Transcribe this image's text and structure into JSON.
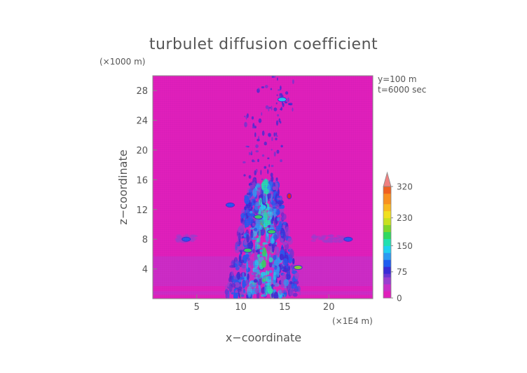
{
  "chart_data": {
    "type": "heatmap",
    "title": "turbulet diffusion coefficient",
    "xlabel": "x−coordinate",
    "ylabel": "z−coordinate",
    "x_unit": "(×1E4 m)",
    "y_unit": "(×1000 m)",
    "annotations": [
      "y=100  m",
      "t=6000 sec"
    ],
    "xlim": [
      0,
      25
    ],
    "ylim": [
      0,
      30
    ],
    "x_ticks": [
      5,
      10,
      15,
      20
    ],
    "y_ticks": [
      4,
      8,
      12,
      16,
      20,
      24,
      28
    ],
    "x_tick_labels": [
      "5",
      "10",
      "15",
      "20"
    ],
    "y_tick_labels": [
      "4",
      "8",
      "12",
      "16",
      "20",
      "24",
      "28"
    ],
    "grid": false,
    "background_value": 0,
    "colorbar": {
      "ticks": [
        0,
        75,
        150,
        230,
        320
      ],
      "tick_labels": [
        "0",
        "75",
        "150",
        "230",
        "320"
      ],
      "extend": "max",
      "levels": [
        {
          "value": 0,
          "color": "#e01fbb"
        },
        {
          "value": 20,
          "color": "#c82fc8"
        },
        {
          "value": 40,
          "color": "#9a3ed0"
        },
        {
          "value": 60,
          "color": "#6a36d4"
        },
        {
          "value": 75,
          "color": "#3a2cd6"
        },
        {
          "value": 95,
          "color": "#1f5cf0"
        },
        {
          "value": 115,
          "color": "#2a9af2"
        },
        {
          "value": 135,
          "color": "#1fd0f0"
        },
        {
          "value": 150,
          "color": "#22e0b0"
        },
        {
          "value": 170,
          "color": "#30d860"
        },
        {
          "value": 190,
          "color": "#7ed62c"
        },
        {
          "value": 210,
          "color": "#c8e020"
        },
        {
          "value": 230,
          "color": "#f0e020"
        },
        {
          "value": 255,
          "color": "#f8b820"
        },
        {
          "value": 275,
          "color": "#f89020"
        },
        {
          "value": 300,
          "color": "#f06020"
        },
        {
          "value": 320,
          "color": "#e82020"
        }
      ],
      "extend_color": "#f08080"
    },
    "layers": [
      {
        "z_range": [
          0.5,
          5.7
        ],
        "value": 22
      },
      {
        "z_range": [
          1.0,
          1.7
        ],
        "value": 6
      }
    ],
    "features": [
      {
        "x": 3.8,
        "z": 8.0,
        "value": 100
      },
      {
        "x": 22.2,
        "z": 8.0,
        "value": 100
      },
      {
        "x": 8.8,
        "z": 12.6,
        "value": 110
      },
      {
        "x": 14.7,
        "z": 26.8,
        "value": 140
      },
      {
        "x": 15.5,
        "z": 13.8,
        "value": 320
      },
      {
        "x": 12.0,
        "z": 11.0,
        "value": 175
      },
      {
        "x": 13.5,
        "z": 9.0,
        "value": 170
      },
      {
        "x": 10.8,
        "z": 6.5,
        "value": 180
      },
      {
        "x": 16.5,
        "z": 4.2,
        "value": 190
      }
    ]
  }
}
